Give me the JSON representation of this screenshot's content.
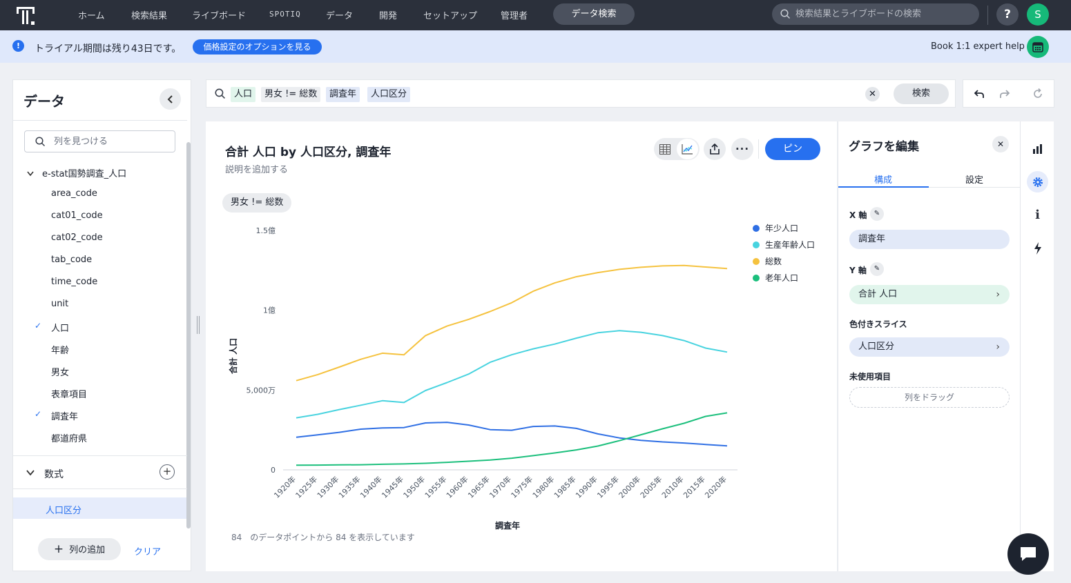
{
  "nav": {
    "items": [
      "ホーム",
      "検索結果",
      "ライブボード",
      "SPOTIQ",
      "データ",
      "開発",
      "セットアップ",
      "管理者"
    ],
    "active_pill": "データ検索",
    "search_placeholder": "検索結果とライブボードの検索",
    "help": "?",
    "avatar_initial": "S"
  },
  "banner": {
    "text": "トライアル期間は残り43日です。",
    "button": "価格設定のオプションを見る",
    "expert": "Book 1:1 expert help"
  },
  "left_panel": {
    "title": "データ",
    "search_placeholder": "列を見つける",
    "source": "e-stat国勢調査_人口",
    "columns": [
      {
        "label": "area_code",
        "checked": false
      },
      {
        "label": "cat01_code",
        "checked": false
      },
      {
        "label": "cat02_code",
        "checked": false
      },
      {
        "label": "tab_code",
        "checked": false
      },
      {
        "label": "time_code",
        "checked": false
      },
      {
        "label": "unit",
        "checked": false
      },
      {
        "label": "人口",
        "checked": true
      },
      {
        "label": "年齢",
        "checked": false
      },
      {
        "label": "男女",
        "checked": false
      },
      {
        "label": "表章項目",
        "checked": false
      },
      {
        "label": "調査年",
        "checked": true
      },
      {
        "label": "都道府県",
        "checked": false
      }
    ],
    "formula_section": "数式",
    "formula_item": "人口区分",
    "add_column": "列の追加",
    "clear": "クリア"
  },
  "search": {
    "tokens": [
      {
        "text": "人口",
        "kind": "measure"
      },
      {
        "text": "男女 != 総数",
        "kind": "filter"
      },
      {
        "text": "調査年",
        "kind": "attr"
      },
      {
        "text": "人口区分",
        "kind": "attr"
      }
    ],
    "button": "検索"
  },
  "chart_card": {
    "title": "合計 人口 by 人口区分, 調査年",
    "description": "説明を追加する",
    "filter_chip": "男女 != 総数",
    "pin": "ピン",
    "datapoints_text": "84　のデータポイントから 84 を表示しています"
  },
  "chart_data": {
    "type": "line",
    "x": [
      "1920年",
      "1925年",
      "1930年",
      "1935年",
      "1940年",
      "1945年",
      "1950年",
      "1955年",
      "1960年",
      "1965年",
      "1970年",
      "1975年",
      "1980年",
      "1985年",
      "1990年",
      "1995年",
      "2000年",
      "2005年",
      "2010年",
      "2015年",
      "2020年"
    ],
    "xlabel": "調査年",
    "ylabel": "合計 人口",
    "ylim": [
      0,
      150000000
    ],
    "yticks": [
      {
        "value": 0,
        "label": "0"
      },
      {
        "value": 50000000,
        "label": "5,000万"
      },
      {
        "value": 100000000,
        "label": "1億"
      },
      {
        "value": 150000000,
        "label": "1.5億"
      }
    ],
    "legend_position": "top-right",
    "series": [
      {
        "name": "年少人口",
        "color": "#2f6fe4",
        "values": [
          20400000,
          21900000,
          23500000,
          25500000,
          26300000,
          26500000,
          29400000,
          29800000,
          28100000,
          25200000,
          24800000,
          27200000,
          27500000,
          26000000,
          22500000,
          20000000,
          18500000,
          17500000,
          16800000,
          15900000,
          15000000
        ]
      },
      {
        "name": "生産年齢人口",
        "color": "#48d3df",
        "values": [
          32600000,
          34800000,
          37800000,
          40500000,
          43300000,
          42200000,
          49700000,
          54700000,
          60000000,
          67400000,
          72100000,
          75800000,
          78800000,
          82500000,
          85900000,
          87200000,
          86200000,
          84100000,
          81000000,
          76300000,
          73800000
        ]
      },
      {
        "name": "総数",
        "color": "#f5c23e",
        "values": [
          55900000,
          59700000,
          64400000,
          69300000,
          73100000,
          72100000,
          84100000,
          90100000,
          94300000,
          99200000,
          104700000,
          111900000,
          117100000,
          121000000,
          123600000,
          125600000,
          126900000,
          127800000,
          128100000,
          127100000,
          126100000
        ]
      },
      {
        "name": "老年人口",
        "color": "#1bbf7c",
        "values": [
          2900000,
          3000000,
          3100000,
          3200000,
          3500000,
          3700000,
          4100000,
          4700000,
          5400000,
          6200000,
          7300000,
          8900000,
          10600000,
          12500000,
          14900000,
          18300000,
          22000000,
          25700000,
          29200000,
          33500000,
          35700000
        ]
      }
    ]
  },
  "edit_panel": {
    "title": "グラフを編集",
    "tabs": [
      "構成",
      "設定"
    ],
    "x_axis_label": "X 軸",
    "x_axis_value": "調査年",
    "y_axis_label": "Y 軸",
    "y_axis_value": "合計 人口",
    "color_label": "色付きスライス",
    "color_value": "人口区分",
    "unused_label": "未使用項目",
    "drag_hint": "列をドラッグ"
  },
  "colors": {
    "accent": "#2770ef",
    "nav_bg": "#2b303b",
    "brand_green": "#16b979"
  }
}
